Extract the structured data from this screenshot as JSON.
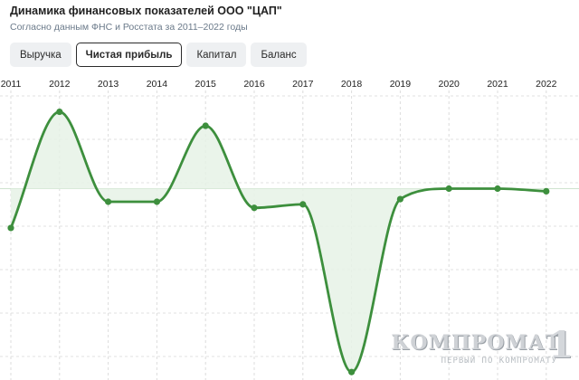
{
  "header": {
    "title": "Динамика финансовых показателей ООО \"ЦАП\"",
    "subtitle": "Согласно данным ФНС и Росстата за 2011–2022 годы"
  },
  "tabs": [
    {
      "label": "Выручка",
      "active": false
    },
    {
      "label": "Чистая прибыль",
      "active": true
    },
    {
      "label": "Капитал",
      "active": false
    },
    {
      "label": "Баланс",
      "active": false
    }
  ],
  "watermark": {
    "main": "КОМПРОМАТ",
    "number": "1",
    "sub": "ПЕРВЫЙ ПО КОМПРОМАТУ"
  },
  "chart_data": {
    "type": "line",
    "categories": [
      "2011",
      "2012",
      "2013",
      "2014",
      "2015",
      "2016",
      "2017",
      "2018",
      "2019",
      "2020",
      "2021",
      "2022"
    ],
    "series": [
      {
        "values": [
          -4.5,
          8.8,
          -1.5,
          -1.5,
          7.2,
          -2.2,
          -1.8,
          -21.0,
          -1.2,
          0.0,
          0.0,
          -0.3
        ]
      }
    ],
    "ylim": [
      -21.5,
      10
    ],
    "grid": true,
    "smooth": true,
    "line_color": "#3d8f3d",
    "fill_color": "#e6f2e6",
    "zero_baseline": true
  }
}
